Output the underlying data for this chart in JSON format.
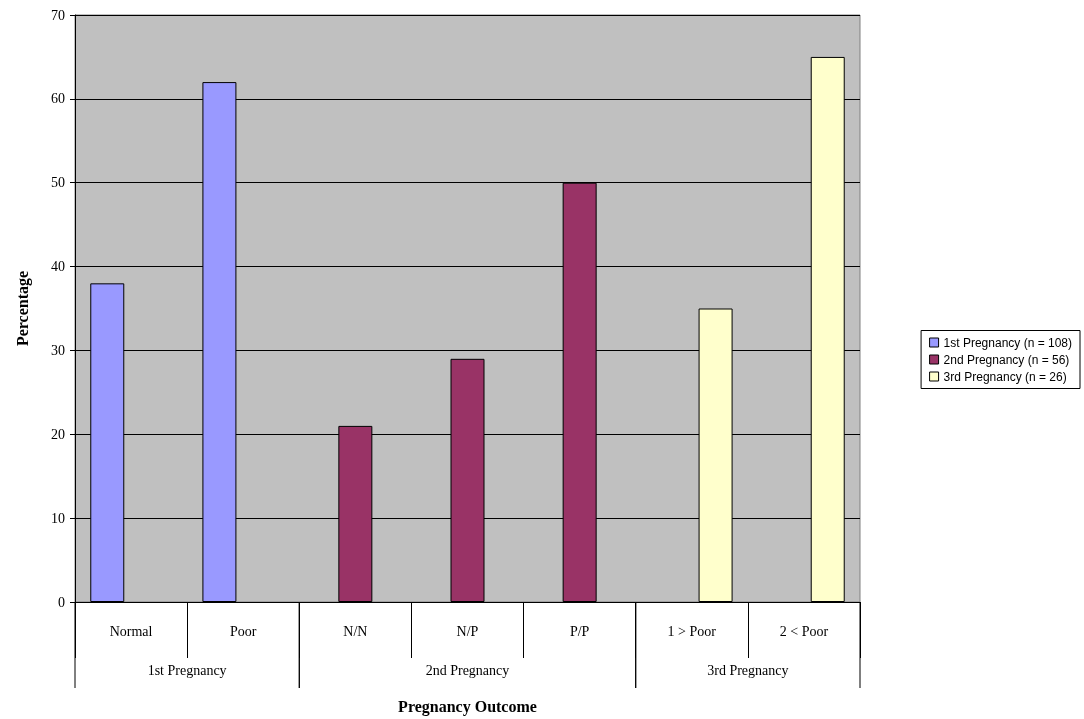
{
  "chart_data": {
    "type": "bar",
    "xlabel": "Pregnancy Outcome",
    "ylabel": "Percentage",
    "categories": [
      "Normal",
      "Poor",
      "N/N",
      "N/P",
      "P/P",
      "1 > Poor",
      "2 < Poor"
    ],
    "series": [
      {
        "name": "1st Pregnancy (n = 108)",
        "color": "#9999ff",
        "values": [
          38,
          62,
          null,
          null,
          null,
          null,
          null
        ]
      },
      {
        "name": "2nd Pregnancy (n = 56)",
        "color": "#993366",
        "values": [
          null,
          null,
          21,
          29,
          50,
          null,
          null
        ]
      },
      {
        "name": "3rd Pregnancy (n = 26)",
        "color": "#ffffcc",
        "values": [
          null,
          null,
          null,
          null,
          null,
          35,
          65
        ]
      }
    ],
    "annotations": [
      "1st Pregnancy",
      "2nd Pregnancy",
      "3rd Pregnancy"
    ],
    "ylim": [
      0,
      70
    ],
    "yticks": [
      0,
      10,
      20,
      30,
      40,
      50,
      60,
      70
    ],
    "grid": "y",
    "legend": "right"
  }
}
